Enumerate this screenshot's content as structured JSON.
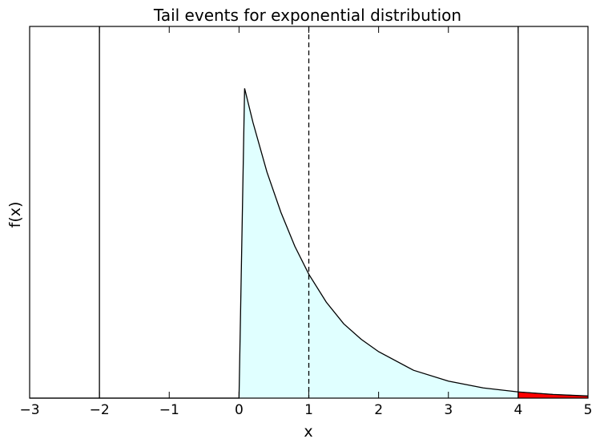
{
  "chart_data": {
    "type": "area",
    "title": "Tail events for exponential distribution",
    "xlabel": "x",
    "ylabel": "f(x)",
    "xlim": [
      -3,
      5
    ],
    "ylim": [
      0,
      1.2
    ],
    "xticks": [
      -3,
      -2,
      -1,
      0,
      1,
      2,
      3,
      4,
      5
    ],
    "xtick_labels": [
      "−3",
      "−2",
      "−1",
      "0",
      "1",
      "2",
      "3",
      "4",
      "5"
    ],
    "y_ticks_shown": false,
    "distribution": "exponential",
    "rate": 1,
    "mean": 1,
    "curve_x": [
      -3.0,
      0.0,
      0.08,
      0.2,
      0.4,
      0.6,
      0.8,
      1.0,
      1.25,
      1.5,
      1.75,
      2.0,
      2.5,
      3.0,
      3.5,
      4.0,
      4.5,
      5.0
    ],
    "curve_y": [
      0.0,
      0.0,
      1.0,
      0.89,
      0.73,
      0.6,
      0.49,
      0.4,
      0.31,
      0.24,
      0.19,
      0.15,
      0.09,
      0.055,
      0.033,
      0.02,
      0.012,
      0.007
    ],
    "fill_color": "#e0ffff",
    "tail_region": {
      "x_from": 4,
      "x_to": 5,
      "color": "#ff0000"
    },
    "vertical_lines": [
      {
        "x": -2,
        "style": "solid",
        "color": "#000000"
      },
      {
        "x": 1,
        "style": "dashed",
        "color": "#000000"
      },
      {
        "x": 4,
        "style": "solid",
        "color": "#000000"
      }
    ],
    "grid": false,
    "legend": "none"
  }
}
